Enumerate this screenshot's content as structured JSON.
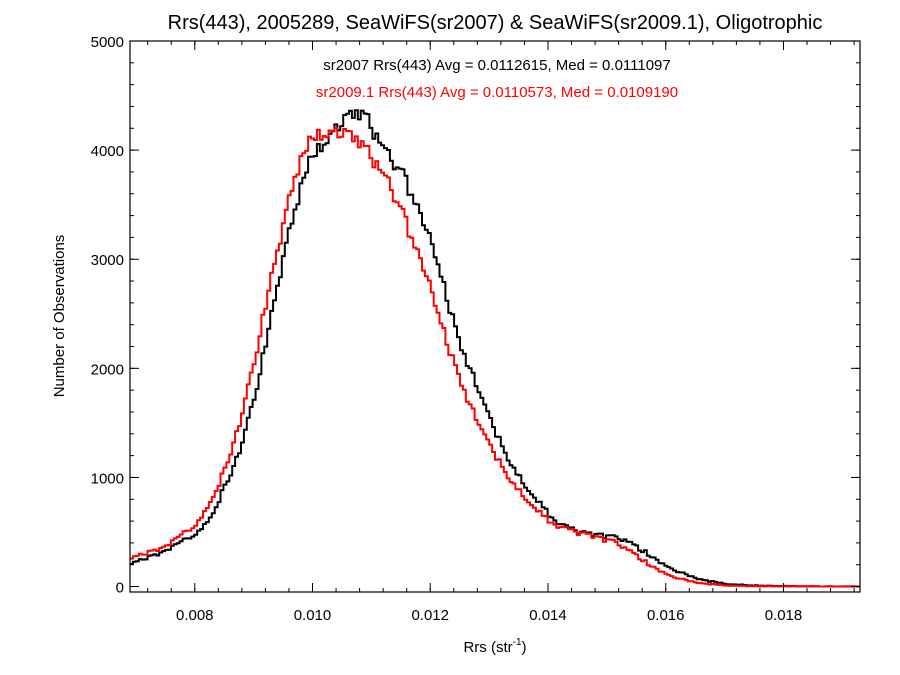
{
  "chart_data": {
    "type": "line",
    "step": true,
    "title": "Rrs(443), 2005289, SeaWiFS(sr2007) & SeaWiFS(sr2009.1), Oligotrophic",
    "xlabel_main": "Rrs (str",
    "xlabel_sup": "-1",
    "xlabel_close": ")",
    "ylabel": "Number of Observations",
    "xlim": [
      0.0069,
      0.0193
    ],
    "ylim": [
      -50,
      5000
    ],
    "x_ticks": [
      0.008,
      0.01,
      0.012,
      0.014,
      0.016,
      0.018
    ],
    "x_tick_labels": [
      "0.008",
      "0.010",
      "0.012",
      "0.014",
      "0.016",
      "0.018"
    ],
    "y_ticks": [
      0,
      1000,
      2000,
      3000,
      4000,
      5000
    ],
    "y_tick_labels": [
      "0",
      "1000",
      "2000",
      "3000",
      "4000",
      "5000"
    ],
    "annotations": [
      {
        "text": "sr2007 Rrs(443) Avg = 0.0112615, Med = 0.0111097",
        "color": "#000000"
      },
      {
        "text": "sr2009.1 Rrs(443) Avg = 0.0110573, Med = 0.0109190",
        "color": "#ff0000"
      }
    ],
    "series": [
      {
        "color": "#000000",
        "points": [
          [
            0.0069,
            200
          ],
          [
            0.0075,
            330
          ],
          [
            0.008,
            480
          ],
          [
            0.0083,
            650
          ],
          [
            0.0085,
            900
          ],
          [
            0.0087,
            1150
          ],
          [
            0.0089,
            1500
          ],
          [
            0.0091,
            1950
          ],
          [
            0.0093,
            2500
          ],
          [
            0.0095,
            3000
          ],
          [
            0.0097,
            3450
          ],
          [
            0.0099,
            3850
          ],
          [
            0.0101,
            4020
          ],
          [
            0.0103,
            4150
          ],
          [
            0.0105,
            4250
          ],
          [
            0.0107,
            4330
          ],
          [
            0.0109,
            4300
          ],
          [
            0.0111,
            4120
          ],
          [
            0.0113,
            3950
          ],
          [
            0.0115,
            3800
          ],
          [
            0.0117,
            3580
          ],
          [
            0.0119,
            3320
          ],
          [
            0.0121,
            3000
          ],
          [
            0.0123,
            2600
          ],
          [
            0.0125,
            2250
          ],
          [
            0.0127,
            1950
          ],
          [
            0.0129,
            1680
          ],
          [
            0.0131,
            1420
          ],
          [
            0.0133,
            1200
          ],
          [
            0.0135,
            1010
          ],
          [
            0.0137,
            860
          ],
          [
            0.0139,
            730
          ],
          [
            0.0141,
            620
          ],
          [
            0.0143,
            550
          ],
          [
            0.0145,
            500
          ],
          [
            0.0147,
            480
          ],
          [
            0.0149,
            470
          ],
          [
            0.0151,
            450
          ],
          [
            0.0153,
            420
          ],
          [
            0.0155,
            360
          ],
          [
            0.0157,
            300
          ],
          [
            0.0159,
            230
          ],
          [
            0.0161,
            170
          ],
          [
            0.0163,
            120
          ],
          [
            0.0165,
            80
          ],
          [
            0.0167,
            55
          ],
          [
            0.0169,
            35
          ],
          [
            0.0171,
            20
          ],
          [
            0.0175,
            10
          ],
          [
            0.018,
            4
          ],
          [
            0.0186,
            2
          ],
          [
            0.0193,
            0
          ]
        ]
      },
      {
        "color": "#ff0000",
        "points": [
          [
            0.0069,
            250
          ],
          [
            0.0075,
            370
          ],
          [
            0.008,
            560
          ],
          [
            0.0083,
            800
          ],
          [
            0.0085,
            1050
          ],
          [
            0.0087,
            1380
          ],
          [
            0.0089,
            1800
          ],
          [
            0.0091,
            2300
          ],
          [
            0.0093,
            2850
          ],
          [
            0.0095,
            3300
          ],
          [
            0.0097,
            3750
          ],
          [
            0.0099,
            4050
          ],
          [
            0.0101,
            4150
          ],
          [
            0.0103,
            4180
          ],
          [
            0.0105,
            4150
          ],
          [
            0.0107,
            4110
          ],
          [
            0.0109,
            4000
          ],
          [
            0.0111,
            3870
          ],
          [
            0.0113,
            3700
          ],
          [
            0.0115,
            3450
          ],
          [
            0.0117,
            3180
          ],
          [
            0.0119,
            2900
          ],
          [
            0.0121,
            2550
          ],
          [
            0.0123,
            2200
          ],
          [
            0.0125,
            1920
          ],
          [
            0.0127,
            1620
          ],
          [
            0.0129,
            1400
          ],
          [
            0.0131,
            1200
          ],
          [
            0.0133,
            1030
          ],
          [
            0.0135,
            880
          ],
          [
            0.0137,
            760
          ],
          [
            0.0139,
            650
          ],
          [
            0.0141,
            580
          ],
          [
            0.0143,
            530
          ],
          [
            0.0145,
            490
          ],
          [
            0.0147,
            470
          ],
          [
            0.0149,
            440
          ],
          [
            0.0151,
            410
          ],
          [
            0.0153,
            350
          ],
          [
            0.0155,
            280
          ],
          [
            0.0157,
            210
          ],
          [
            0.0159,
            150
          ],
          [
            0.0161,
            100
          ],
          [
            0.0163,
            65
          ],
          [
            0.0165,
            40
          ],
          [
            0.0167,
            25
          ],
          [
            0.0169,
            15
          ],
          [
            0.0171,
            8
          ],
          [
            0.0175,
            4
          ],
          [
            0.018,
            2
          ],
          [
            0.0186,
            1
          ],
          [
            0.0193,
            0
          ]
        ]
      }
    ]
  }
}
